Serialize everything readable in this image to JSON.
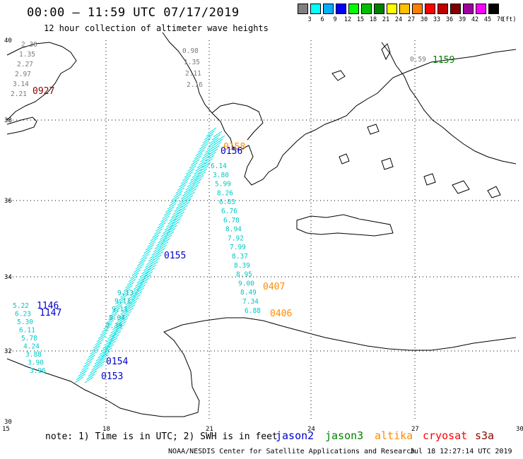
{
  "header": {
    "title": "00:00 – 11:59 UTC 07/17/2019",
    "subtitle": "12 hour collection of altimeter wave heights"
  },
  "color_scale": {
    "labels": [
      "3",
      "6",
      "9",
      "12",
      "15",
      "18",
      "21",
      "24",
      "27",
      "30",
      "33",
      "36",
      "39",
      "42",
      "45",
      "70"
    ],
    "unit": "(ft)",
    "colors": [
      "#808080",
      "#00ffff",
      "#00b0ff",
      "#0000ff",
      "#00ff00",
      "#00c000",
      "#008000",
      "#ffff00",
      "#ffc000",
      "#ff8000",
      "#ff0000",
      "#c00000",
      "#800000",
      "#a000a0",
      "#ff00ff",
      "#000000"
    ]
  },
  "axes": {
    "lat_labels": [
      "40",
      "38",
      "36",
      "34",
      "32",
      "30"
    ],
    "lon_labels": [
      "15",
      "18",
      "21",
      "24",
      "27",
      "30"
    ]
  },
  "passes": [
    {
      "label": "0927",
      "color": "#8b0000"
    },
    {
      "label": "1159",
      "color": "#008000"
    },
    {
      "label": "0158",
      "color": "#ff8c00"
    },
    {
      "label": "0156",
      "color": "#0000cd"
    },
    {
      "label": "0155",
      "color": "#0000cd"
    },
    {
      "label": "0407",
      "color": "#ff8c00"
    },
    {
      "label": "0406",
      "color": "#ff8c00"
    },
    {
      "label": "1146",
      "color": "#0000cd"
    },
    {
      "label": "1147",
      "color": "#0000cd"
    },
    {
      "label": "0154",
      "color": "#0000cd"
    },
    {
      "label": "0153",
      "color": "#0000cd"
    }
  ],
  "observations": {
    "track_nw": [
      "2.38",
      "1.35",
      "2.27",
      "2.97",
      "3.14",
      "2.21"
    ],
    "track_ionian": [
      "0.98",
      "1.35",
      "2.11",
      "2.16"
    ],
    "track_main": [
      "6.14",
      "3.80",
      "5.99",
      "8.26",
      "6.83",
      "6.76",
      "6.78",
      "8.94",
      "7.92",
      "7.99",
      "8.37",
      "8.39",
      "8.95",
      "9.00",
      "8.49",
      "7.34",
      "6.88"
    ],
    "track_west": [
      "5.22",
      "6.23",
      "5.30",
      "6.11",
      "5.78",
      "4.24",
      "3.88",
      "3.90",
      "3.96"
    ],
    "track_libya": [
      "9.13",
      "9.11",
      "9.11",
      "9.04",
      "7.39"
    ],
    "track_east": [
      "0.59"
    ]
  },
  "legend": {
    "note": "note: 1) Time is in UTC; 2) SWH is in feet",
    "satellites": [
      {
        "name": "jason2",
        "color": "#0000cd"
      },
      {
        "name": "jason3",
        "color": "#008000"
      },
      {
        "name": "altika",
        "color": "#ff8c00"
      },
      {
        "name": "cryosat",
        "color": "#ff0000"
      },
      {
        "name": "s3a",
        "color": "#8b0000"
      }
    ]
  },
  "footer": {
    "credit": "NOAA/NESDIS Center for Satellite Applications and Research",
    "timestamp": "Jul 18 12:27:14 UTC 2019"
  }
}
